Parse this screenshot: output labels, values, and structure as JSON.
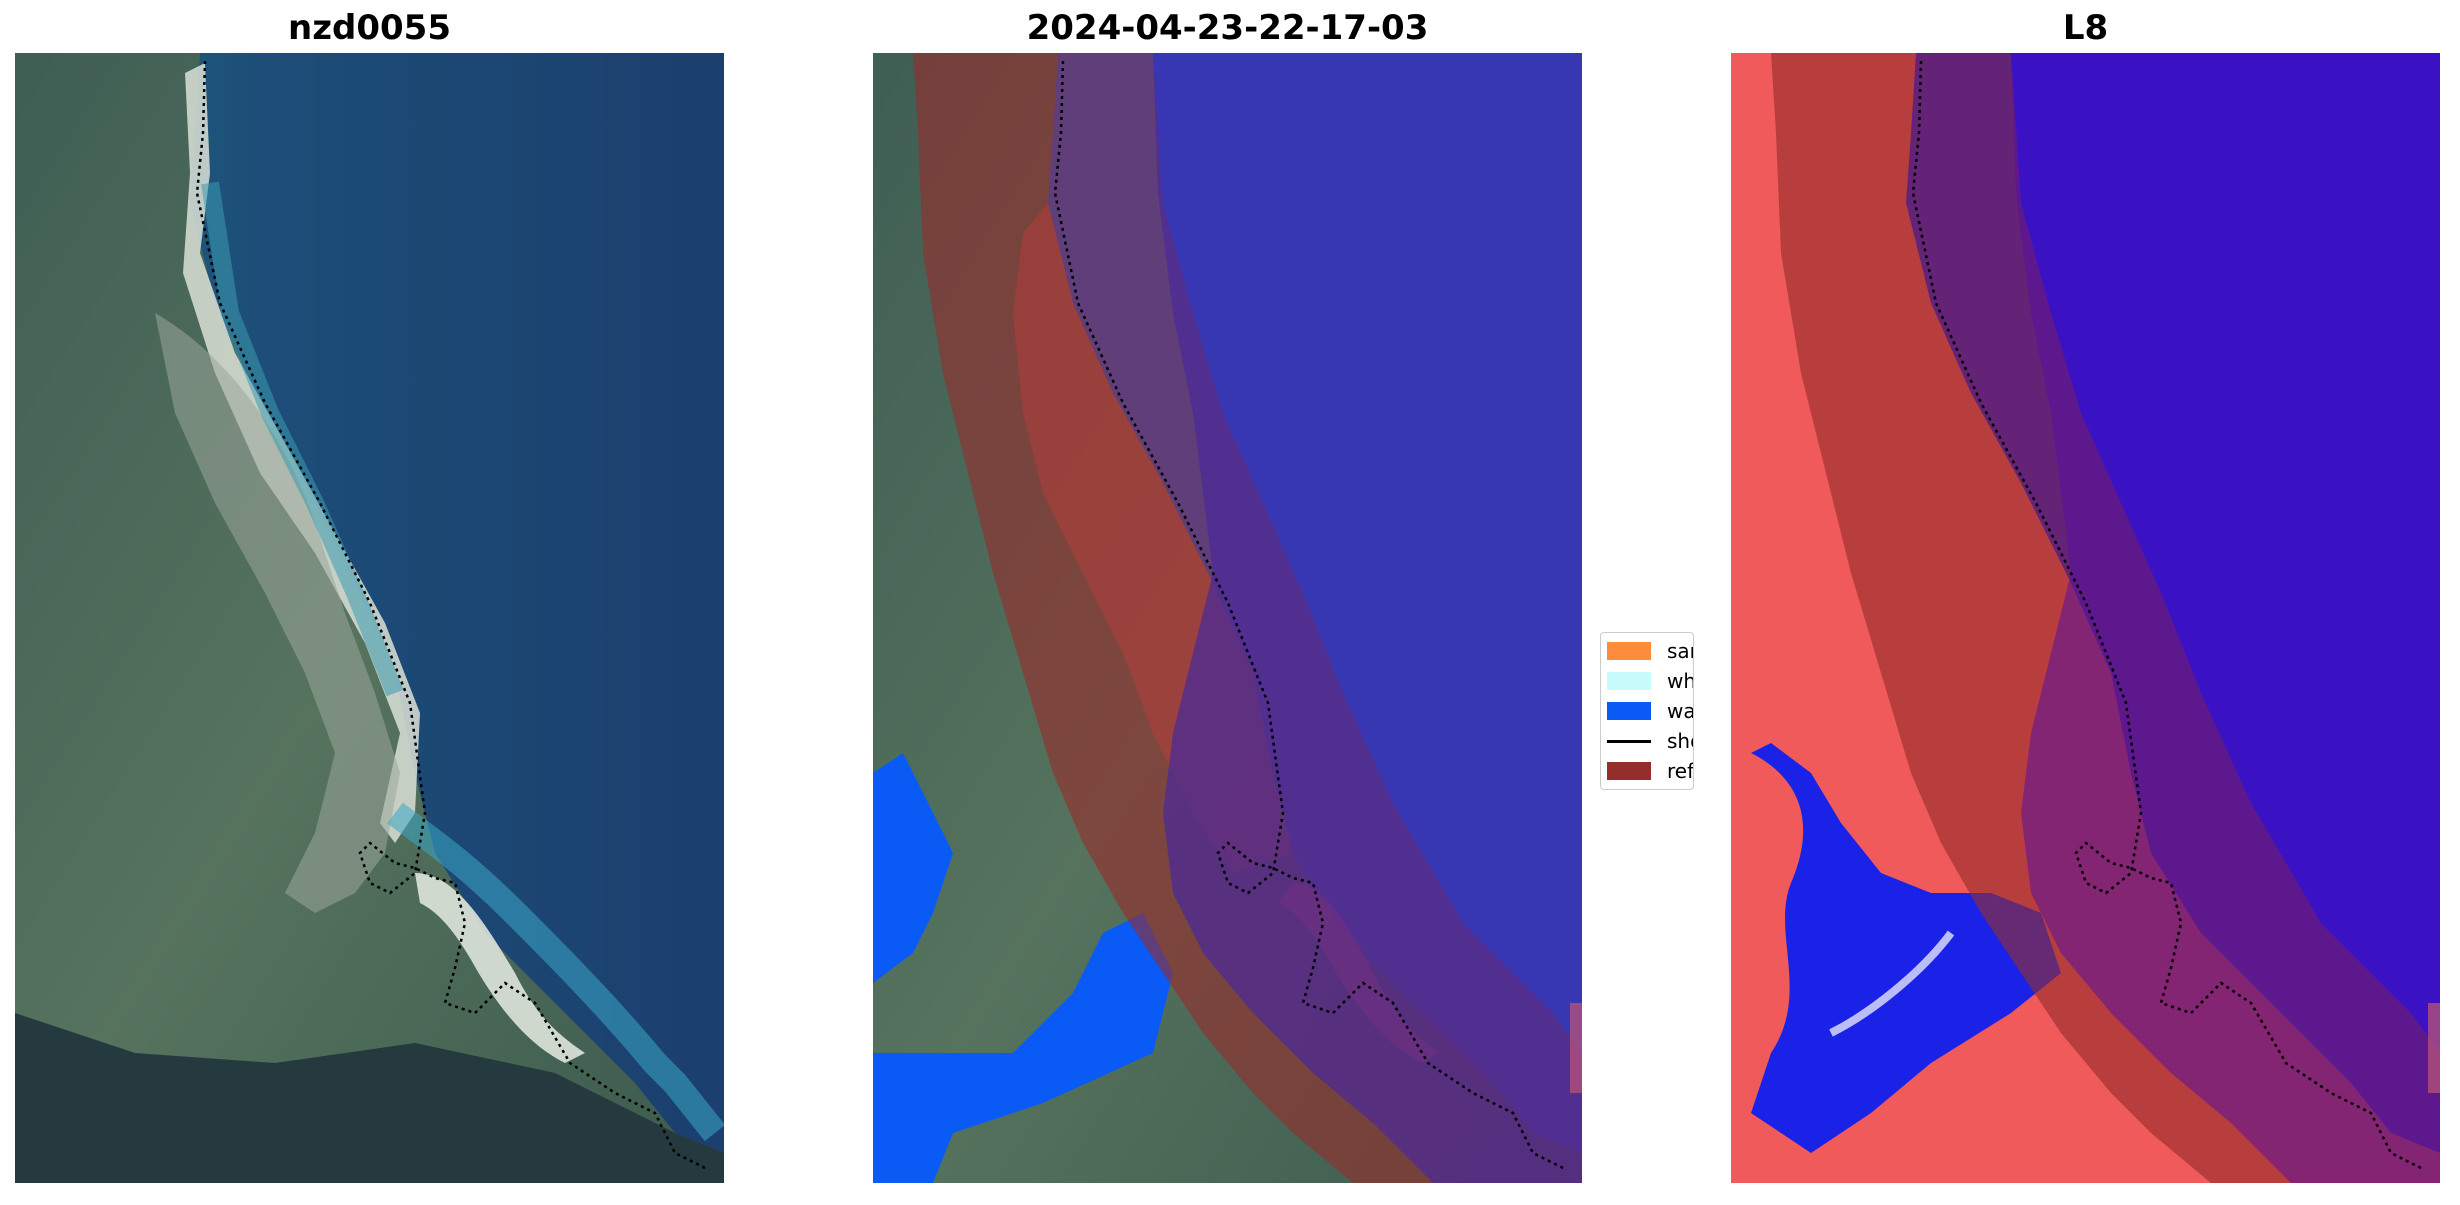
{
  "panels": [
    {
      "title": "nzd0055"
    },
    {
      "title": "2024-04-23-22-17-03"
    },
    {
      "title": "L8"
    }
  ],
  "legend": {
    "items": [
      {
        "label": "sand",
        "color": "#ff8c3c",
        "kind": "patch"
      },
      {
        "label": "whitew",
        "color": "#c8fcfc",
        "kind": "patch"
      },
      {
        "label": "water",
        "color": "#0a5af5",
        "kind": "patch"
      },
      {
        "label": "shorel",
        "color": "#000000",
        "kind": "line"
      },
      {
        "label": "referen",
        "color": "#962d2d",
        "kind": "patch"
      }
    ]
  },
  "colors": {
    "water_class": "#0a5af5",
    "reference_buffer": "#962d2d",
    "ocean_rgb": "#1c4070",
    "land_rgb": "#4a6a55",
    "mndwi_water": "#1414f0",
    "mndwi_land": "#f05050"
  }
}
